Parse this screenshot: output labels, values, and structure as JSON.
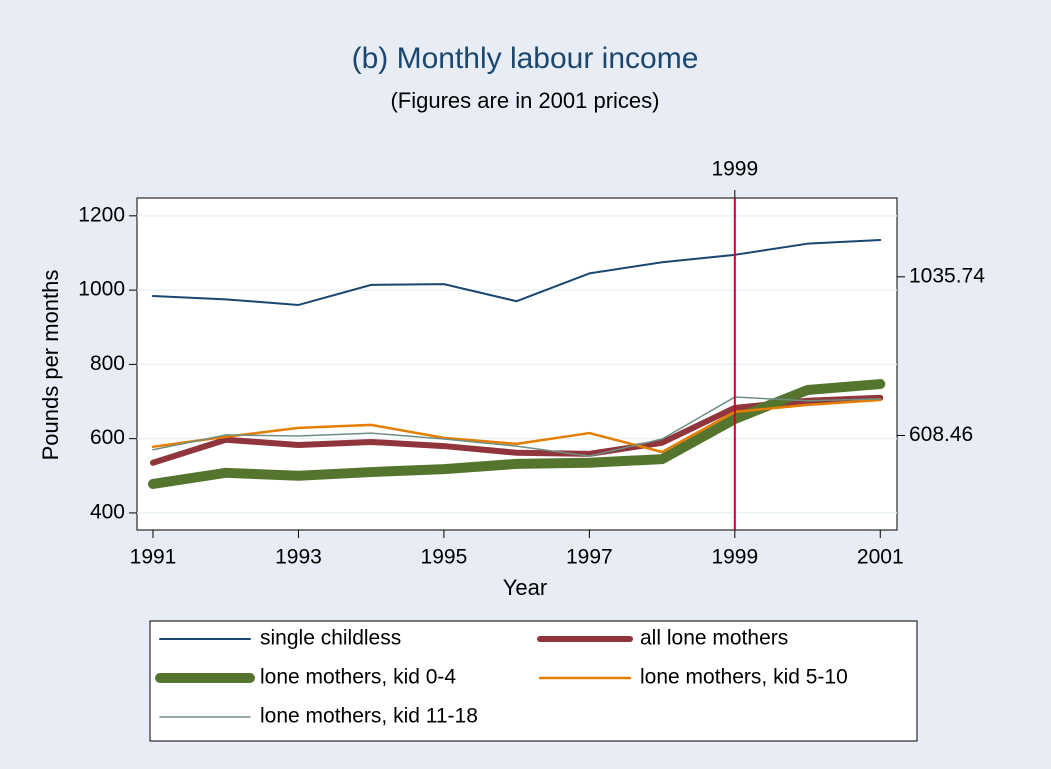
{
  "chart_data": {
    "type": "line",
    "title": "(b) Monthly labour income",
    "subtitle": "(Figures are in 2001 prices)",
    "x_label": "Year",
    "y_label": "Pounds per months",
    "x": [
      1991,
      1992,
      1993,
      1994,
      1995,
      1996,
      1997,
      1998,
      1999,
      2000,
      2001
    ],
    "xlim": [
      1990.78,
      2001.23
    ],
    "xticks": [
      1991,
      1993,
      1995,
      1997,
      1999,
      2001
    ],
    "x2ticks": [
      1999
    ],
    "xline": 1999,
    "xline_color": "#c10534",
    "ylim": [
      354,
      1248
    ],
    "yticks": [
      400,
      600,
      800,
      1000,
      1200
    ],
    "y2lim": [
      354,
      1248
    ],
    "y2ticks": [
      608.46,
      1035.74
    ],
    "grid": true,
    "legend_position": "bottom",
    "series": [
      {
        "name": "single childless",
        "color": "#1a476f",
        "values": [
          984,
          975,
          960,
          1014,
          1016,
          970,
          1045,
          1075,
          1095,
          1125,
          1135
        ]
      },
      {
        "name": "all lone mothers",
        "color": "#90353b",
        "values": [
          535,
          597,
          583,
          591,
          580,
          562,
          559,
          589,
          683,
          702,
          710
        ]
      },
      {
        "name": "lone mothers, kid 0-4",
        "color": "#55752f",
        "values": [
          478,
          508,
          500,
          510,
          518,
          532,
          535,
          545,
          653,
          731,
          747
        ]
      },
      {
        "name": "lone mothers, kid 5-10",
        "color": "#e37e00",
        "values": [
          578,
          605,
          629,
          637,
          602,
          586,
          615,
          564,
          672,
          691,
          704
        ]
      },
      {
        "name": "lone mothers, kid 11-18",
        "color": "#6e8e84",
        "values": [
          570,
          610,
          607,
          615,
          599,
          580,
          553,
          599,
          712,
          702,
          707
        ]
      }
    ]
  }
}
